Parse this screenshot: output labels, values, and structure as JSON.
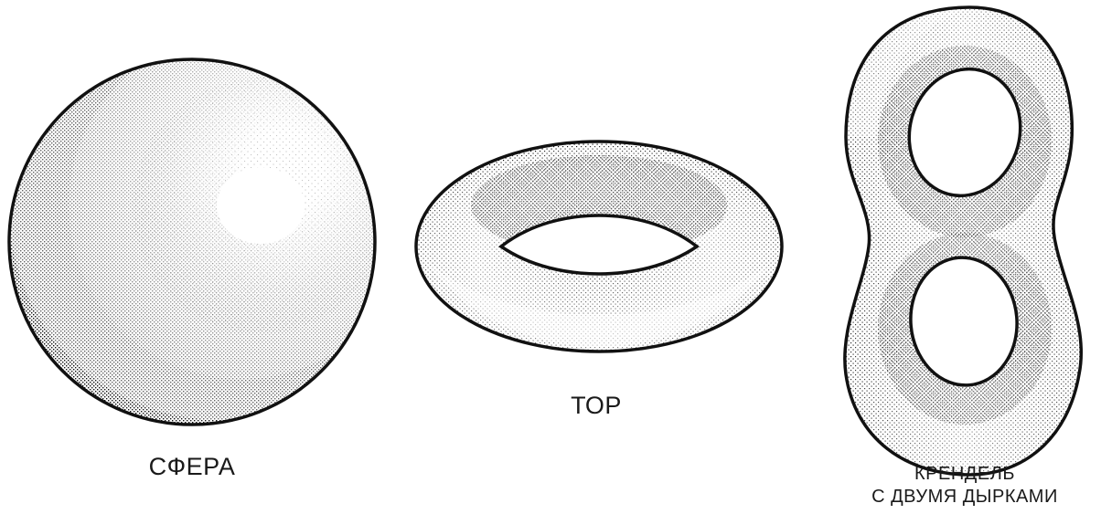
{
  "figures": [
    {
      "id": "sphere",
      "label": "СФЕРА"
    },
    {
      "id": "torus",
      "label": "ТОР"
    },
    {
      "id": "double-torus",
      "label_line1": "КРЕНДЕЛЬ",
      "label_line2": "С ДВУМЯ ДЫРКАМИ"
    }
  ],
  "style": {
    "ink": "#111111",
    "background": "#ffffff",
    "shading": "stipple"
  }
}
